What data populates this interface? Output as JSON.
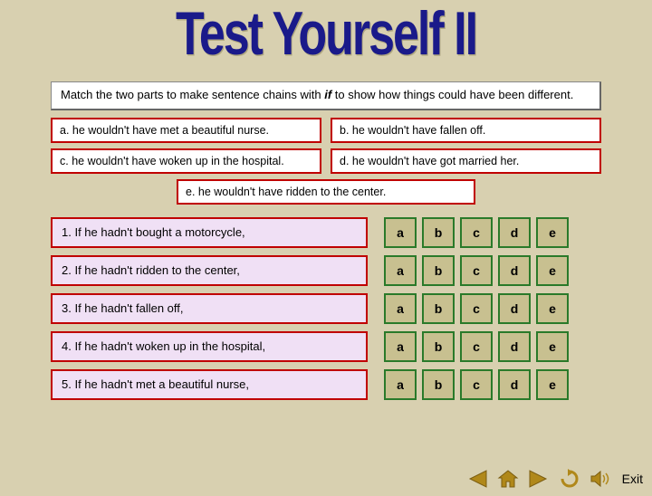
{
  "title": "Test Yourself II",
  "instruction": {
    "pre": "Match the two parts to make sentence chains with ",
    "if": "if",
    "post": " to show how things could have been different."
  },
  "options": {
    "a": "a. he wouldn't have met a beautiful nurse.",
    "b": "b. he wouldn't have fallen off.",
    "c": "c. he wouldn't have woken up in the hospital.",
    "d": "d. he wouldn't have got married her.",
    "e": "e. he wouldn't have ridden to the center."
  },
  "questions": [
    {
      "text": "1. If he hadn't bought a motorcycle,"
    },
    {
      "text": "2. If he hadn't ridden to the center,"
    },
    {
      "text": "3. If he hadn't fallen off,"
    },
    {
      "text": "4. If he hadn't woken up in the hospital,"
    },
    {
      "text": "5. If he hadn't met a beautiful nurse,"
    }
  ],
  "choice_labels": [
    "a",
    "b",
    "c",
    "d",
    "e"
  ],
  "nav": {
    "exit": "Exit"
  },
  "colors": {
    "background": "#d8d0b0",
    "title": "#1a1a8a",
    "red_border": "#c00000",
    "green_border": "#2a7a2a",
    "choice_bg": "#c8c090",
    "question_bg": "#f0e0f5",
    "nav_icon": "#b0881a"
  }
}
